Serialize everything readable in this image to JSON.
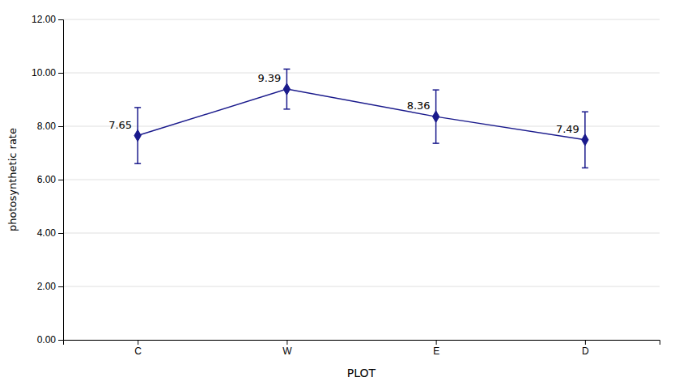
{
  "chart_data": {
    "type": "line",
    "categories": [
      "C",
      "W",
      "E",
      "D"
    ],
    "values": [
      7.65,
      9.39,
      8.36,
      7.49
    ],
    "errors": [
      1.05,
      0.75,
      1.0,
      1.05
    ],
    "color": "#1a1a8c",
    "marker": "diamond",
    "xlabel": "PLOT",
    "ylabel": "photosynthetic rate",
    "ylim": [
      0,
      12
    ],
    "yticks": [
      {
        "value": 0,
        "label": "0.00"
      },
      {
        "value": 2,
        "label": "2.00"
      },
      {
        "value": 4,
        "label": "4.00"
      },
      {
        "value": 6,
        "label": "6.00"
      },
      {
        "value": 8,
        "label": "8.00"
      },
      {
        "value": 10,
        "label": "10.00"
      },
      {
        "value": 12,
        "label": "12.00"
      }
    ],
    "grid": true,
    "data_labels": true
  }
}
